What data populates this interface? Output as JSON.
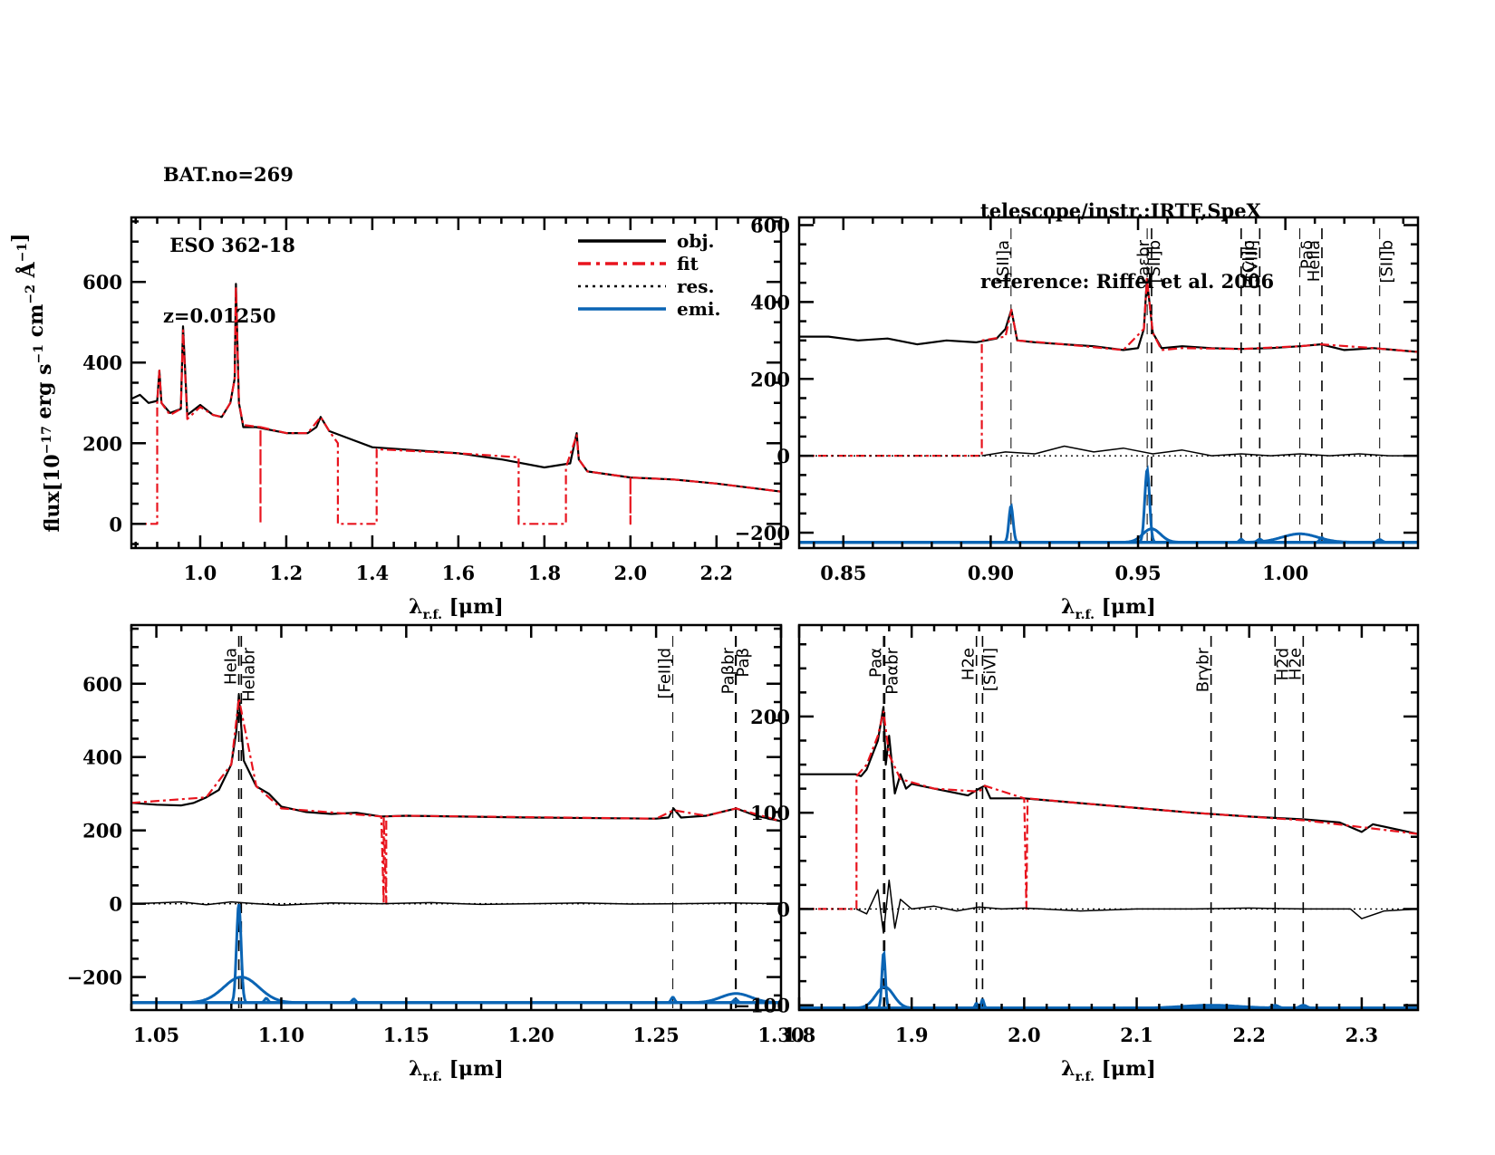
{
  "header": {
    "left": [
      "BAT.no=269",
      " ESO 362-18",
      "z=0.01250"
    ],
    "right": [
      "telescope/instr.:IRTF,SpeX",
      "reference: Riffel et al. 2006"
    ]
  },
  "colors": {
    "obj": "#000000",
    "fit": "#e8141e",
    "res": "#000000",
    "emi": "#0a64b4"
  },
  "legend": [
    {
      "key": "obj",
      "label": "obj."
    },
    {
      "key": "fit",
      "label": "fit"
    },
    {
      "key": "res",
      "label": "res."
    },
    {
      "key": "emi",
      "label": "emi."
    }
  ],
  "chart_data": [
    {
      "type": "line",
      "title": "",
      "xlabel": "λr.f. [μm]",
      "ylabel": "flux[10^-17 erg s^-1 cm^-2 Å^-1]",
      "xlim": [
        0.84,
        2.35
      ],
      "ylim": [
        -60,
        760
      ],
      "xticks": [
        1.0,
        1.2,
        1.4,
        1.6,
        1.8,
        2.0,
        2.2
      ],
      "xtick_labels": [
        "1.0",
        "1.2",
        "1.4",
        "1.6",
        "1.8",
        "2.0",
        "2.2"
      ],
      "yticks": [
        0,
        200,
        400,
        600
      ],
      "ytick_labels": [
        "0",
        "200",
        "400",
        "600"
      ],
      "legend_position": "top-right",
      "series": [
        {
          "name": "obj.",
          "x": [
            0.84,
            0.86,
            0.88,
            0.9,
            0.905,
            0.91,
            0.93,
            0.955,
            0.96,
            0.97,
            1.0,
            1.03,
            1.05,
            1.07,
            1.08,
            1.083,
            1.09,
            1.1,
            1.13,
            1.2,
            1.25,
            1.27,
            1.28,
            1.3,
            1.4,
            1.6,
            1.7,
            1.8,
            1.86,
            1.875,
            1.88,
            1.9,
            2.0,
            2.1,
            2.2,
            2.35
          ],
          "y": [
            310,
            320,
            300,
            305,
            380,
            300,
            275,
            285,
            490,
            270,
            295,
            270,
            265,
            300,
            360,
            595,
            300,
            240,
            240,
            225,
            225,
            240,
            265,
            230,
            190,
            175,
            160,
            140,
            150,
            225,
            160,
            130,
            115,
            110,
            100,
            80
          ]
        },
        {
          "name": "fit",
          "x": [
            0.84,
            0.9,
            0.9,
            0.905,
            0.91,
            0.93,
            0.955,
            0.96,
            0.97,
            1.0,
            1.03,
            1.05,
            1.07,
            1.08,
            1.083,
            1.09,
            1.1,
            1.14,
            1.14,
            1.14,
            1.2,
            1.25,
            1.28,
            1.3,
            1.32,
            1.32,
            1.41,
            1.41,
            1.6,
            1.74,
            1.74,
            1.85,
            1.85,
            1.875,
            1.88,
            1.9,
            2.0,
            2.0,
            2.0,
            2.1,
            2.2,
            2.35
          ],
          "y": [
            0,
            0,
            300,
            380,
            300,
            270,
            285,
            480,
            260,
            290,
            270,
            265,
            300,
            360,
            590,
            300,
            245,
            240,
            0,
            240,
            225,
            225,
            265,
            230,
            200,
            0,
            0,
            185,
            175,
            165,
            0,
            0,
            140,
            220,
            160,
            130,
            115,
            0,
            115,
            110,
            100,
            80
          ]
        }
      ]
    },
    {
      "type": "line",
      "title": "",
      "xlabel": "λr.f. [μm]",
      "ylabel": "",
      "xlim": [
        0.835,
        1.045
      ],
      "ylim": [
        -240,
        620
      ],
      "xticks": [
        0.85,
        0.9,
        0.95,
        1.0
      ],
      "xtick_labels": [
        "0.85",
        "0.90",
        "0.95",
        "1.00"
      ],
      "yticks": [
        -200,
        0,
        200,
        400,
        600
      ],
      "ytick_labels": [
        "-200",
        "0",
        "200",
        "400",
        "600"
      ],
      "line_markers": [
        {
          "label": "[SII]a",
          "x": 0.9069,
          "style": "thin"
        },
        {
          "label": "[SII]b",
          "x": 0.9531,
          "style": "thin"
        },
        {
          "label": "Paεbr",
          "x": 0.9546,
          "style": "dashed"
        },
        {
          "label": "[CI]b",
          "x": 0.985,
          "style": "dashed"
        },
        {
          "label": "[SVIII]",
          "x": 0.9913,
          "style": "dashed"
        },
        {
          "label": "Paδ",
          "x": 1.0049,
          "style": "thin"
        },
        {
          "label": "HeIIa",
          "x": 1.0124,
          "style": "dashed"
        },
        {
          "label": "[SII]b",
          "x": 1.032,
          "style": "thin"
        }
      ],
      "series": [
        {
          "name": "obj.",
          "x": [
            0.835,
            0.845,
            0.855,
            0.865,
            0.875,
            0.885,
            0.895,
            0.902,
            0.905,
            0.907,
            0.909,
            0.915,
            0.925,
            0.935,
            0.945,
            0.95,
            0.952,
            0.953,
            0.955,
            0.958,
            0.965,
            0.975,
            0.985,
            0.995,
            1.005,
            1.012,
            1.02,
            1.03,
            1.045
          ],
          "y": [
            310,
            310,
            300,
            305,
            290,
            300,
            295,
            305,
            330,
            380,
            300,
            295,
            290,
            285,
            275,
            280,
            330,
            460,
            320,
            280,
            285,
            280,
            278,
            280,
            285,
            290,
            275,
            280,
            270
          ]
        },
        {
          "name": "fit",
          "x": [
            0.835,
            0.897,
            0.897,
            0.905,
            0.907,
            0.909,
            0.925,
            0.945,
            0.952,
            0.953,
            0.955,
            0.958,
            0.965,
            0.985,
            1.005,
            1.012,
            1.03,
            1.045
          ],
          "y": [
            0,
            0,
            300,
            310,
            380,
            300,
            290,
            275,
            330,
            460,
            320,
            275,
            280,
            278,
            285,
            290,
            280,
            270
          ]
        },
        {
          "name": "res.",
          "x": [
            0.897,
            0.905,
            0.915,
            0.925,
            0.935,
            0.945,
            0.955,
            0.965,
            0.975,
            0.985,
            0.995,
            1.005,
            1.015,
            1.025,
            1.035,
            1.045
          ],
          "y": [
            0,
            10,
            5,
            25,
            10,
            20,
            5,
            15,
            0,
            5,
            0,
            5,
            0,
            5,
            0,
            0
          ]
        },
        {
          "name": "emi.",
          "base": -225,
          "components": [
            {
              "center": 0.9069,
              "amp": 95,
              "sigma": 0.0007
            },
            {
              "center": 0.9531,
              "amp": 190,
              "sigma": 0.0008
            },
            {
              "center": 0.9546,
              "amp": 35,
              "sigma": 0.003
            },
            {
              "center": 0.985,
              "amp": 8,
              "sigma": 0.0006
            },
            {
              "center": 0.9913,
              "amp": 8,
              "sigma": 0.0008
            },
            {
              "center": 1.0049,
              "amp": 22,
              "sigma": 0.006
            },
            {
              "center": 1.0124,
              "amp": 12,
              "sigma": 0.0007
            },
            {
              "center": 1.032,
              "amp": 7,
              "sigma": 0.0008
            }
          ]
        }
      ]
    },
    {
      "type": "line",
      "title": "",
      "xlabel": "λr.f. [μm]",
      "ylabel": "",
      "xlim": [
        1.04,
        1.3
      ],
      "ylim": [
        -290,
        760
      ],
      "xticks": [
        1.05,
        1.1,
        1.15,
        1.2,
        1.25,
        1.3
      ],
      "xtick_labels": [
        "1.05",
        "1.10",
        "1.15",
        "1.20",
        "1.25",
        "1.30"
      ],
      "yticks": [
        -200,
        0,
        200,
        400,
        600
      ],
      "ytick_labels": [
        "-200",
        "0",
        "200",
        "400",
        "600"
      ],
      "line_markers": [
        {
          "label": "HeIa",
          "x": 1.083,
          "style": "dashed"
        },
        {
          "label": "HeIabr",
          "x": 1.084,
          "style": "dashed"
        },
        {
          "label": "[FeII]d",
          "x": 1.2567,
          "style": "thin"
        },
        {
          "label": "Paβ",
          "x": 1.2818,
          "style": "dashed"
        },
        {
          "label": "Paβbr",
          "x": 1.282,
          "style": "dashed"
        }
      ],
      "series": [
        {
          "name": "obj.",
          "x": [
            1.04,
            1.05,
            1.06,
            1.065,
            1.07,
            1.075,
            1.08,
            1.082,
            1.083,
            1.085,
            1.09,
            1.095,
            1.1,
            1.11,
            1.12,
            1.13,
            1.14,
            1.15,
            1.2,
            1.25,
            1.255,
            1.257,
            1.26,
            1.27,
            1.282,
            1.29,
            1.3
          ],
          "y": [
            275,
            270,
            268,
            275,
            290,
            310,
            380,
            470,
            570,
            390,
            320,
            300,
            265,
            250,
            245,
            248,
            238,
            240,
            235,
            232,
            235,
            260,
            235,
            240,
            260,
            240,
            225
          ]
        },
        {
          "name": "fit",
          "x": [
            1.04,
            1.07,
            1.08,
            1.083,
            1.09,
            1.1,
            1.14,
            1.141,
            1.141,
            1.142,
            1.142,
            1.15,
            1.25,
            1.257,
            1.27,
            1.282,
            1.3
          ],
          "y": [
            275,
            290,
            380,
            560,
            320,
            260,
            238,
            0,
            238,
            0,
            238,
            240,
            232,
            255,
            240,
            260,
            225
          ]
        },
        {
          "name": "res.",
          "x": [
            1.04,
            1.05,
            1.06,
            1.07,
            1.08,
            1.09,
            1.1,
            1.12,
            1.14,
            1.16,
            1.18,
            1.2,
            1.22,
            1.24,
            1.26,
            1.28,
            1.3
          ],
          "y": [
            0,
            2,
            5,
            -3,
            5,
            0,
            -4,
            2,
            0,
            3,
            -2,
            0,
            2,
            -1,
            0,
            2,
            0
          ]
        },
        {
          "name": "emi.",
          "base": -270,
          "components": [
            {
              "center": 1.083,
              "amp": 270,
              "sigma": 0.0009
            },
            {
              "center": 1.084,
              "amp": 70,
              "sigma": 0.007
            },
            {
              "center": 1.094,
              "amp": 12,
              "sigma": 0.0007
            },
            {
              "center": 1.129,
              "amp": 10,
              "sigma": 0.0007
            },
            {
              "center": 1.2567,
              "amp": 15,
              "sigma": 0.0007
            },
            {
              "center": 1.2818,
              "amp": 10,
              "sigma": 0.0008
            },
            {
              "center": 1.282,
              "amp": 25,
              "sigma": 0.006
            }
          ]
        }
      ]
    },
    {
      "type": "line",
      "title": "",
      "xlabel": "λr.f. [μm]",
      "ylabel": "",
      "xlim": [
        1.8,
        2.35
      ],
      "ylim": [
        -105,
        295
      ],
      "xticks": [
        1.8,
        1.9,
        2.0,
        2.1,
        2.2,
        2.3
      ],
      "xtick_labels": [
        "1.8",
        "1.9",
        "2.0",
        "2.1",
        "2.2",
        "2.3"
      ],
      "yticks": [
        -100,
        0,
        100,
        200
      ],
      "ytick_labels": [
        "-100",
        "0",
        "100",
        "200"
      ],
      "line_markers": [
        {
          "label": "Paα",
          "x": 1.8751,
          "style": "dashed"
        },
        {
          "label": "Paαbr",
          "x": 1.876,
          "style": "dashed"
        },
        {
          "label": "H2e",
          "x": 1.9576,
          "style": "dashed"
        },
        {
          "label": "[SiVI]",
          "x": 1.963,
          "style": "dashed"
        },
        {
          "label": "Brγbr",
          "x": 2.1661,
          "style": "dashed"
        },
        {
          "label": "H2d",
          "x": 2.223,
          "style": "dashed"
        },
        {
          "label": "H2e",
          "x": 2.248,
          "style": "dashed"
        }
      ],
      "series": [
        {
          "name": "obj.",
          "x": [
            1.8,
            1.85,
            1.855,
            1.86,
            1.865,
            1.87,
            1.875,
            1.877,
            1.88,
            1.885,
            1.89,
            1.895,
            1.9,
            1.92,
            1.95,
            1.96,
            1.965,
            1.97,
            2.0,
            2.05,
            2.1,
            2.15,
            2.2,
            2.25,
            2.28,
            2.3,
            2.31,
            2.35
          ],
          "y": [
            140,
            140,
            138,
            145,
            160,
            175,
            210,
            150,
            180,
            120,
            140,
            125,
            130,
            125,
            118,
            125,
            128,
            115,
            115,
            110,
            105,
            100,
            96,
            93,
            90,
            80,
            88,
            78
          ]
        },
        {
          "name": "fit",
          "x": [
            1.8,
            1.851,
            1.851,
            1.86,
            1.87,
            1.875,
            1.88,
            1.89,
            1.92,
            1.96,
            1.965,
            2.0,
            2.002,
            2.002,
            2.003,
            2.05,
            2.1,
            2.15,
            2.2,
            2.25,
            2.3,
            2.35
          ],
          "y": [
            0,
            0,
            138,
            150,
            180,
            205,
            160,
            135,
            125,
            122,
            128,
            115,
            0,
            0,
            115,
            110,
            105,
            100,
            96,
            92,
            85,
            78
          ]
        },
        {
          "name": "res.",
          "x": [
            1.851,
            1.86,
            1.87,
            1.875,
            1.88,
            1.885,
            1.89,
            1.9,
            1.92,
            1.94,
            1.96,
            1.98,
            2.0,
            2.05,
            2.1,
            2.15,
            2.2,
            2.25,
            2.29,
            2.3,
            2.32,
            2.35
          ],
          "y": [
            0,
            -5,
            20,
            -25,
            30,
            -20,
            10,
            0,
            3,
            -2,
            2,
            0,
            1,
            -2,
            0,
            0,
            1,
            0,
            0,
            -10,
            -2,
            0
          ]
        },
        {
          "name": "emi.",
          "base": -103,
          "components": [
            {
              "center": 1.8751,
              "amp": 58,
              "sigma": 0.0015
            },
            {
              "center": 1.876,
              "amp": 22,
              "sigma": 0.008
            },
            {
              "center": 1.9576,
              "amp": 5,
              "sigma": 0.0012
            },
            {
              "center": 1.963,
              "amp": 9,
              "sigma": 0.0012
            },
            {
              "center": 2.1661,
              "amp": 3,
              "sigma": 0.025
            },
            {
              "center": 2.223,
              "amp": 3,
              "sigma": 0.003
            },
            {
              "center": 2.248,
              "amp": 3,
              "sigma": 0.003
            }
          ]
        }
      ]
    }
  ]
}
